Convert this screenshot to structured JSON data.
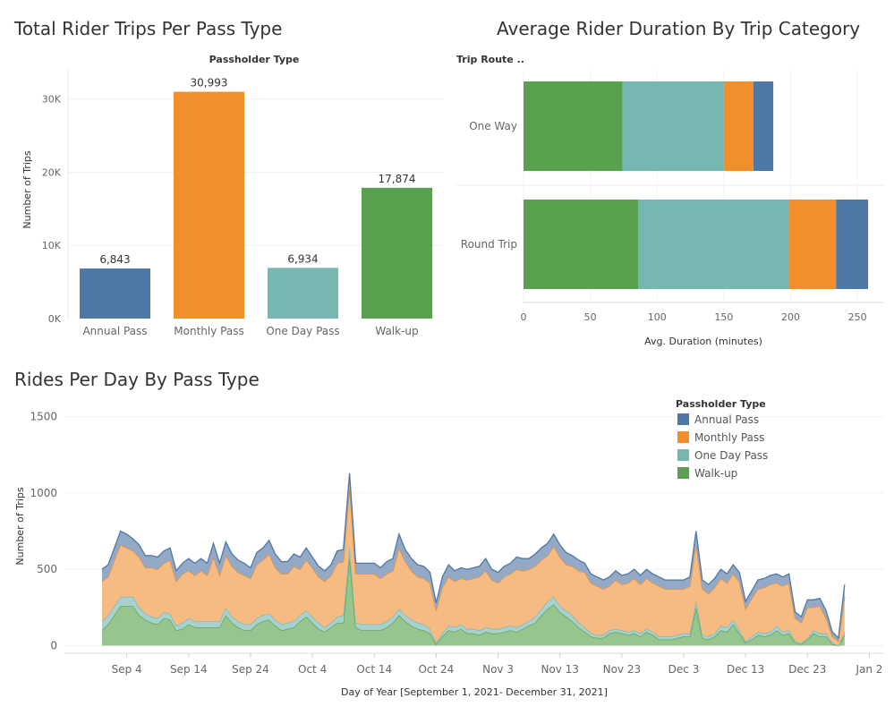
{
  "colors": {
    "annual": "#4e79a7",
    "monthly": "#f28e2b",
    "oneday": "#76b7b2",
    "walkup": "#59a14f"
  },
  "chart_data": [
    {
      "type": "bar",
      "title": "Total Rider Trips Per Pass Type",
      "header": "Passholder Type",
      "ylabel": "Number of Trips",
      "ylim": [
        0,
        34000
      ],
      "yticks": [
        {
          "v": 0,
          "label": "0K"
        },
        {
          "v": 10000,
          "label": "10K"
        },
        {
          "v": 20000,
          "label": "20K"
        },
        {
          "v": 30000,
          "label": "30K"
        }
      ],
      "categories": [
        "Annual Pass",
        "Monthly Pass",
        "One Day Pass",
        "Walk-up"
      ],
      "values": [
        6843,
        30993,
        6934,
        17874
      ],
      "value_labels": [
        "6,843",
        "30,993",
        "6,934",
        "17,874"
      ]
    },
    {
      "type": "bar",
      "orientation": "horizontal-stacked",
      "title": "Average Rider Duration By Trip Category",
      "header": "Trip Route ..",
      "xlabel": "Avg. Duration (minutes)",
      "xlim": [
        0,
        270
      ],
      "xticks": [
        0,
        50,
        100,
        150,
        200,
        250
      ],
      "categories": [
        "One Way",
        "Round Trip"
      ],
      "series": [
        {
          "key": "walkup",
          "values": [
            74,
            86
          ]
        },
        {
          "key": "oneday",
          "values": [
            76,
            113
          ]
        },
        {
          "key": "monthly",
          "values": [
            22,
            35
          ]
        },
        {
          "key": "annual",
          "values": [
            15,
            24
          ]
        }
      ]
    },
    {
      "type": "area",
      "stacked": true,
      "title": "Rides Per Day By Pass Type",
      "xlabel": "Day of Year  [September 1, 2021- December 31, 2021]",
      "ylabel": "Number of Trips",
      "ylim": [
        -50,
        1650
      ],
      "yticks": [
        0,
        500,
        1000,
        1500
      ],
      "xticks": [
        {
          "day": 4,
          "label": "Sep 4"
        },
        {
          "day": 14,
          "label": "Sep 14"
        },
        {
          "day": 24,
          "label": "Sep 24"
        },
        {
          "day": 34,
          "label": "Oct 4"
        },
        {
          "day": 44,
          "label": "Oct 14"
        },
        {
          "day": 54,
          "label": "Oct 24"
        },
        {
          "day": 64,
          "label": "Nov 3"
        },
        {
          "day": 74,
          "label": "Nov 13"
        },
        {
          "day": 84,
          "label": "Nov 23"
        },
        {
          "day": 94,
          "label": "Dec 3"
        },
        {
          "day": 104,
          "label": "Dec 13"
        },
        {
          "day": 114,
          "label": "Dec 23"
        },
        {
          "day": 124,
          "label": "Jan 2"
        }
      ],
      "legend": {
        "title": "Passholder Type",
        "position": "top-right",
        "entries": [
          {
            "key": "annual",
            "label": "Annual Pass"
          },
          {
            "key": "monthly",
            "label": "Monthly Pass"
          },
          {
            "key": "oneday",
            "label": "One Day Pass"
          },
          {
            "key": "walkup",
            "label": "Walk-up"
          }
        ]
      },
      "dates": [
        "Sep 1",
        "Sep 2",
        "Sep 3",
        "Sep 4",
        "Sep 5",
        "Sep 6",
        "Sep 7",
        "Sep 8",
        "Sep 9",
        "Sep 10",
        "Sep 11",
        "Sep 12",
        "Sep 13",
        "Sep 14",
        "Sep 15",
        "Sep 16",
        "Sep 17",
        "Sep 18",
        "Sep 19",
        "Sep 20",
        "Sep 21",
        "Sep 22",
        "Sep 23",
        "Sep 24",
        "Sep 25",
        "Sep 26",
        "Sep 27",
        "Sep 28",
        "Sep 29",
        "Sep 30",
        "Oct 1",
        "Oct 2",
        "Oct 3",
        "Oct 4",
        "Oct 5",
        "Oct 6",
        "Oct 7",
        "Oct 8",
        "Oct 9",
        "Oct 10",
        "Oct 11",
        "Oct 12",
        "Oct 13",
        "Oct 14",
        "Oct 15",
        "Oct 16",
        "Oct 17",
        "Oct 18",
        "Oct 19",
        "Oct 20",
        "Oct 21",
        "Oct 22",
        "Oct 23",
        "Oct 24",
        "Oct 25",
        "Oct 26",
        "Oct 27",
        "Oct 28",
        "Oct 29",
        "Oct 30",
        "Oct 31",
        "Nov 1",
        "Nov 2",
        "Nov 3",
        "Nov 4",
        "Nov 5",
        "Nov 6",
        "Nov 7",
        "Nov 8",
        "Nov 9",
        "Nov 10",
        "Nov 11",
        "Nov 12",
        "Nov 13",
        "Nov 14",
        "Nov 15",
        "Nov 16",
        "Nov 17",
        "Nov 18",
        "Nov 19",
        "Nov 20",
        "Nov 21",
        "Nov 22",
        "Nov 23",
        "Nov 24",
        "Nov 25",
        "Nov 26",
        "Nov 27",
        "Nov 28",
        "Nov 29",
        "Nov 30",
        "Dec 1",
        "Dec 2",
        "Dec 3",
        "Dec 4",
        "Dec 5",
        "Dec 6",
        "Dec 7",
        "Dec 8",
        "Dec 9",
        "Dec 10",
        "Dec 11",
        "Dec 12",
        "Dec 13",
        "Dec 14",
        "Dec 15",
        "Dec 16",
        "Dec 17",
        "Dec 18",
        "Dec 19",
        "Dec 20",
        "Dec 21",
        "Dec 22",
        "Dec 23",
        "Dec 24",
        "Dec 25",
        "Dec 26",
        "Dec 27",
        "Dec 28",
        "Dec 29",
        "Dec 30",
        "Dec 31"
      ],
      "walkup": [
        100,
        140,
        200,
        260,
        260,
        260,
        200,
        170,
        150,
        140,
        180,
        170,
        100,
        110,
        140,
        120,
        120,
        120,
        120,
        120,
        200,
        150,
        120,
        100,
        100,
        140,
        160,
        170,
        130,
        100,
        110,
        120,
        160,
        190,
        150,
        110,
        90,
        120,
        150,
        150,
        580,
        120,
        100,
        100,
        100,
        100,
        120,
        150,
        200,
        160,
        130,
        110,
        100,
        80,
        10,
        60,
        100,
        90,
        110,
        80,
        80,
        70,
        90,
        80,
        80,
        90,
        100,
        90,
        110,
        130,
        150,
        200,
        240,
        270,
        220,
        190,
        160,
        120,
        90,
        60,
        50,
        50,
        80,
        90,
        80,
        70,
        80,
        60,
        90,
        70,
        40,
        40,
        40,
        50,
        60,
        60,
        250,
        50,
        40,
        60,
        100,
        90,
        140,
        80,
        20,
        40,
        70,
        60,
        70,
        100,
        70,
        80,
        20,
        10,
        40,
        80,
        60,
        60,
        10,
        0,
        70
      ],
      "oneday": [
        60,
        60,
        60,
        60,
        60,
        60,
        50,
        40,
        40,
        40,
        40,
        40,
        30,
        40,
        40,
        40,
        40,
        40,
        40,
        40,
        50,
        40,
        40,
        40,
        40,
        40,
        40,
        40,
        40,
        40,
        40,
        40,
        40,
        40,
        40,
        40,
        30,
        30,
        40,
        50,
        70,
        30,
        40,
        40,
        40,
        40,
        40,
        40,
        40,
        40,
        40,
        40,
        40,
        30,
        10,
        20,
        30,
        30,
        30,
        30,
        30,
        30,
        30,
        30,
        30,
        30,
        30,
        30,
        30,
        30,
        40,
        40,
        50,
        50,
        40,
        40,
        40,
        30,
        30,
        20,
        20,
        20,
        20,
        20,
        20,
        20,
        20,
        20,
        20,
        20,
        20,
        20,
        20,
        20,
        20,
        20,
        40,
        20,
        20,
        20,
        30,
        30,
        30,
        20,
        10,
        20,
        20,
        20,
        20,
        30,
        20,
        20,
        10,
        10,
        10,
        20,
        20,
        20,
        10,
        0,
        20
      ],
      "monthly": [
        260,
        250,
        300,
        340,
        320,
        300,
        330,
        300,
        320,
        320,
        320,
        350,
        290,
        320,
        310,
        300,
        330,
        300,
        420,
        300,
        340,
        330,
        320,
        320,
        300,
        350,
        360,
        390,
        340,
        330,
        320,
        360,
        300,
        330,
        320,
        300,
        300,
        310,
        350,
        350,
        390,
        320,
        330,
        330,
        330,
        300,
        310,
        300,
        400,
        350,
        320,
        300,
        300,
        300,
        210,
        300,
        320,
        300,
        300,
        320,
        330,
        350,
        370,
        320,
        300,
        330,
        340,
        380,
        350,
        340,
        330,
        320,
        300,
        330,
        320,
        300,
        320,
        340,
        360,
        330,
        320,
        300,
        290,
        320,
        300,
        320,
        340,
        320,
        330,
        320,
        330,
        310,
        310,
        300,
        290,
        310,
        380,
        300,
        280,
        300,
        310,
        290,
        300,
        320,
        210,
        250,
        280,
        300,
        310,
        280,
        300,
        310,
        150,
        130,
        200,
        150,
        180,
        100,
        40,
        30,
        230
      ],
      "annual": [
        80,
        80,
        80,
        90,
        90,
        80,
        80,
        80,
        80,
        80,
        80,
        80,
        70,
        70,
        80,
        80,
        80,
        80,
        90,
        80,
        90,
        80,
        80,
        80,
        70,
        80,
        80,
        90,
        90,
        80,
        80,
        80,
        80,
        80,
        70,
        70,
        70,
        70,
        80,
        80,
        90,
        70,
        70,
        70,
        70,
        70,
        80,
        80,
        90,
        80,
        80,
        80,
        80,
        70,
        50,
        70,
        80,
        70,
        70,
        70,
        70,
        70,
        80,
        70,
        70,
        70,
        70,
        80,
        80,
        70,
        80,
        80,
        80,
        80,
        80,
        80,
        70,
        70,
        60,
        60,
        60,
        60,
        60,
        60,
        60,
        60,
        60,
        60,
        60,
        60,
        60,
        60,
        60,
        60,
        60,
        60,
        80,
        60,
        60,
        60,
        60,
        60,
        60,
        60,
        50,
        50,
        60,
        60,
        60,
        60,
        60,
        60,
        40,
        40,
        50,
        50,
        50,
        50,
        30,
        20,
        80
      ]
    }
  ]
}
